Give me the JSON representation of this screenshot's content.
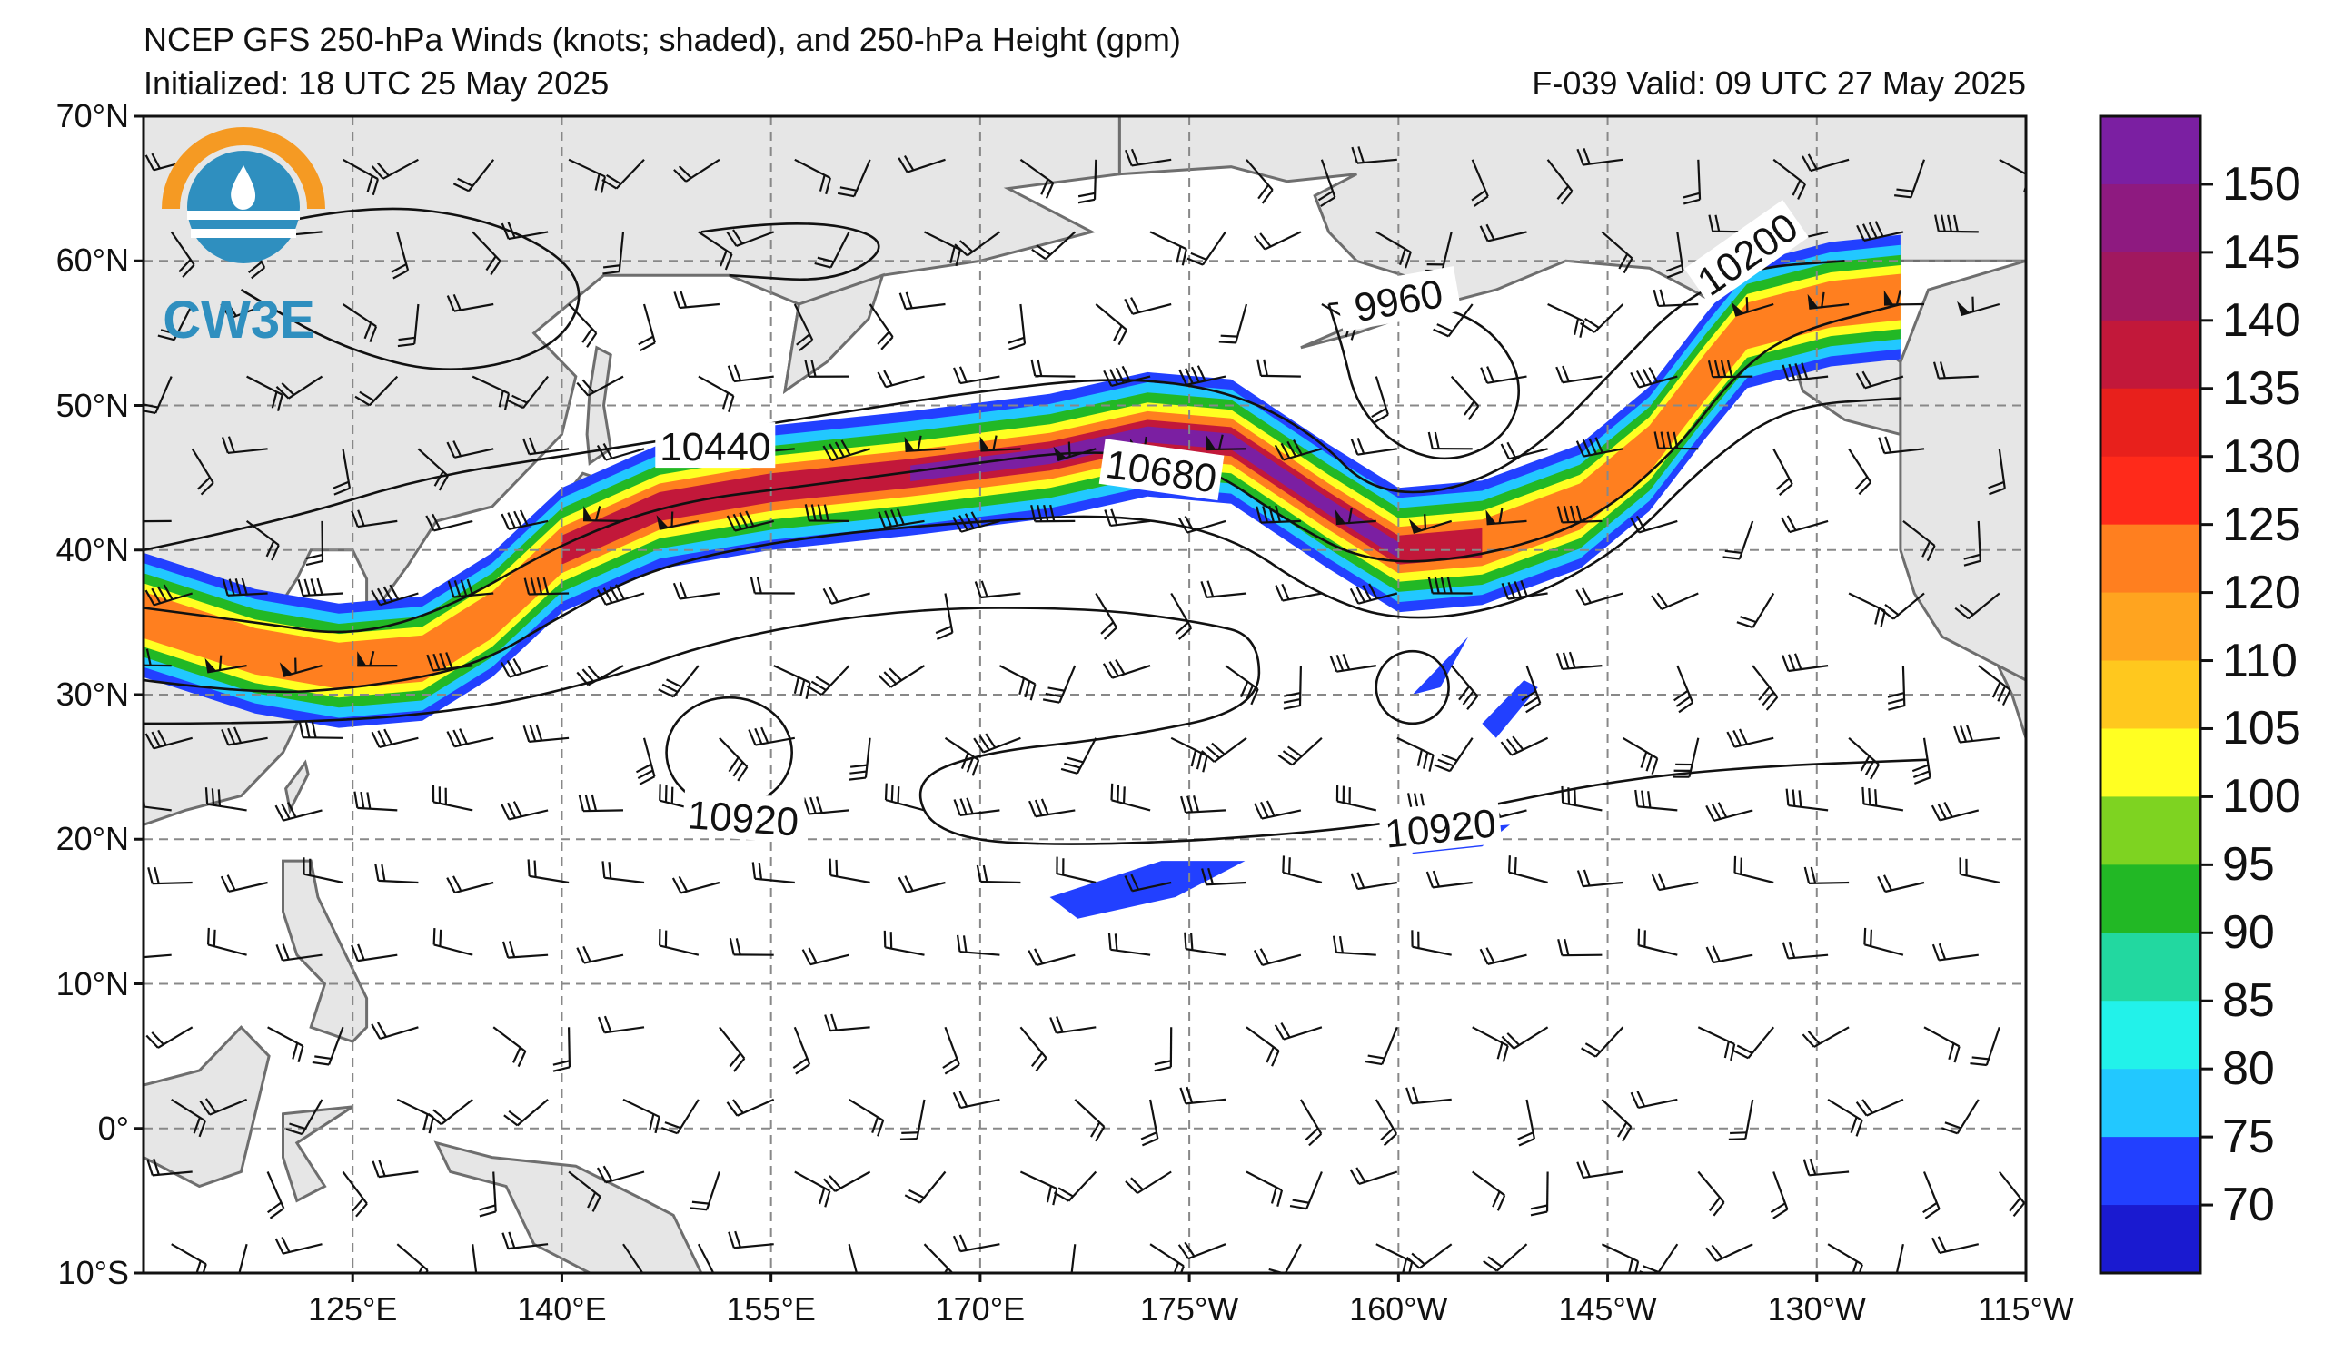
{
  "header": {
    "title": "NCEP GFS 250-hPa Winds (knots; shaded), and 250-hPa Height (gpm)",
    "initialized": "Initialized: 18 UTC 25 May 2025",
    "valid": "F-039  Valid: 09 UTC 27 May 2025"
  },
  "logo": {
    "text": "CW3E"
  },
  "map": {
    "lon_range": [
      110,
      245
    ],
    "lat_range": [
      -10,
      70
    ],
    "lat_labels": [
      "70°N",
      "60°N",
      "50°N",
      "40°N",
      "30°N",
      "20°N",
      "10°N",
      "0°",
      "10°S"
    ],
    "lon_labels": [
      "125°E",
      "140°E",
      "155°E",
      "170°E",
      "175°W",
      "160°W",
      "145°W",
      "130°W",
      "115°W"
    ],
    "contour_labels": [
      "10440",
      "10680",
      "9960",
      "10200",
      "10920",
      "10920"
    ],
    "land_color": "#e6e6e6",
    "coast_color": "#6e6e6e",
    "grid_color": "#888888"
  },
  "colorbar": {
    "ticks": [
      "150",
      "145",
      "140",
      "135",
      "130",
      "125",
      "120",
      "110",
      "105",
      "100",
      "95",
      "90",
      "85",
      "80",
      "75",
      "70"
    ],
    "colors": [
      "#7b1fa2",
      "#8e1a80",
      "#a1185f",
      "#c2183a",
      "#e8201c",
      "#ff2a1a",
      "#ff7f1f",
      "#ffa41f",
      "#ffc81e",
      "#ffff22",
      "#7ed321",
      "#22b825",
      "#22d8a0",
      "#22f2ea",
      "#22c8ff",
      "#2240ff",
      "#1a1ad0"
    ]
  },
  "jet_colors": {
    "jet_75": "#2240ff",
    "jet_85": "#22c8ff",
    "jet_95": "#22b825",
    "jet_110": "#ffff22",
    "jet_125": "#ff7f1f",
    "jet_140": "#c2183a",
    "jet_150": "#7b1fa2"
  }
}
